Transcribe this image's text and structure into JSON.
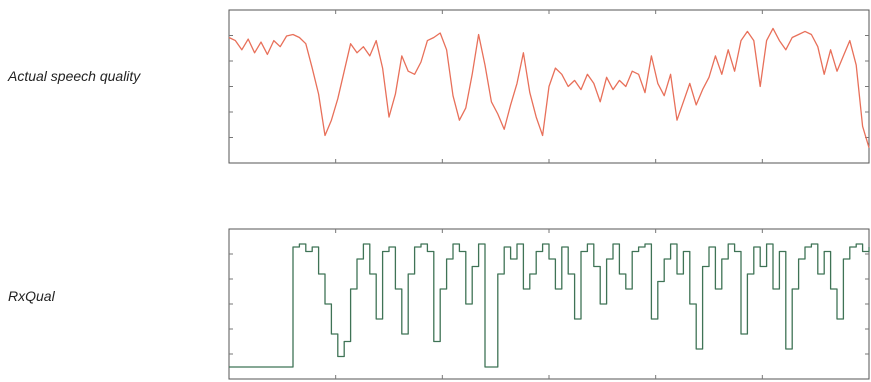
{
  "labels": {
    "top": "Actual speech quality",
    "bottom": "RxQual"
  },
  "colors": {
    "speech_line": "#e8705a",
    "rxqual_line": "#3f7356",
    "axis": "#555555",
    "tick": "#777777"
  },
  "chart_data": [
    {
      "type": "line",
      "title": "",
      "xlabel": "",
      "ylabel": "",
      "xlim": [
        0,
        100
      ],
      "ylim": [
        0,
        100
      ],
      "grid": false,
      "series": [
        {
          "x": [
            0,
            1,
            2,
            3,
            4,
            5,
            6,
            7,
            8,
            9,
            10,
            11,
            12,
            13,
            14,
            15,
            16,
            17,
            18,
            19,
            20,
            21,
            22,
            23,
            24,
            25,
            26,
            27,
            28,
            29,
            30,
            31,
            32,
            33,
            34,
            35,
            36,
            37,
            38,
            39,
            40,
            41,
            42,
            43,
            44,
            45,
            46,
            47,
            48,
            49,
            50,
            51,
            52,
            53,
            54,
            55,
            56,
            57,
            58,
            59,
            60,
            61,
            62,
            63,
            64,
            65,
            66,
            67,
            68,
            69,
            70,
            71,
            72,
            73,
            74,
            75,
            76,
            77,
            78,
            79,
            80,
            81,
            82,
            83,
            84,
            85,
            86,
            87,
            88,
            89,
            90,
            91,
            92,
            93,
            94,
            95,
            96,
            97,
            98,
            99,
            100
          ],
          "y": [
            82,
            80,
            74,
            81,
            72,
            79,
            71,
            80,
            76,
            83,
            84,
            82,
            78,
            62,
            45,
            18,
            28,
            42,
            60,
            78,
            72,
            76,
            70,
            80,
            62,
            30,
            45,
            70,
            60,
            58,
            66,
            80,
            82,
            85,
            74,
            44,
            28,
            36,
            58,
            84,
            64,
            40,
            32,
            22,
            38,
            52,
            72,
            46,
            30,
            18,
            50,
            62,
            58,
            50,
            54,
            48,
            58,
            52,
            40,
            56,
            48,
            54,
            50,
            60,
            58,
            46,
            70,
            52,
            44,
            58,
            28,
            40,
            52,
            38,
            48,
            56,
            70,
            58,
            74,
            60,
            80,
            86,
            80,
            50,
            80,
            88,
            80,
            74,
            82,
            84,
            86,
            84,
            76,
            58,
            74,
            60,
            70,
            80,
            64,
            24,
            10
          ]
        }
      ]
    },
    {
      "type": "line",
      "title": "",
      "xlabel": "",
      "ylabel": "",
      "xlim": [
        0,
        100
      ],
      "ylim": [
        0,
        100
      ],
      "grid": false,
      "series": [
        {
          "x": [
            0,
            1,
            2,
            3,
            4,
            5,
            6,
            7,
            8,
            9,
            10,
            11,
            12,
            13,
            14,
            15,
            16,
            17,
            18,
            19,
            20,
            21,
            22,
            23,
            24,
            25,
            26,
            27,
            28,
            29,
            30,
            31,
            32,
            33,
            34,
            35,
            36,
            37,
            38,
            39,
            40,
            41,
            42,
            43,
            44,
            45,
            46,
            47,
            48,
            49,
            50,
            51,
            52,
            53,
            54,
            55,
            56,
            57,
            58,
            59,
            60,
            61,
            62,
            63,
            64,
            65,
            66,
            67,
            68,
            69,
            70,
            71,
            72,
            73,
            74,
            75,
            76,
            77,
            78,
            79,
            80,
            81,
            82,
            83,
            84,
            85,
            86,
            87,
            88,
            89,
            90,
            91,
            92,
            93,
            94,
            95,
            96,
            97,
            98,
            99,
            100
          ],
          "y": [
            8,
            8,
            8,
            8,
            8,
            8,
            8,
            8,
            8,
            8,
            88,
            90,
            85,
            88,
            70,
            50,
            30,
            15,
            25,
            60,
            80,
            90,
            70,
            40,
            85,
            88,
            60,
            30,
            70,
            88,
            90,
            85,
            25,
            60,
            80,
            90,
            85,
            50,
            75,
            90,
            8,
            8,
            70,
            88,
            80,
            90,
            60,
            70,
            85,
            90,
            80,
            60,
            88,
            70,
            40,
            85,
            90,
            75,
            50,
            80,
            90,
            70,
            60,
            85,
            88,
            90,
            40,
            65,
            80,
            90,
            70,
            85,
            50,
            20,
            75,
            88,
            60,
            80,
            90,
            85,
            30,
            70,
            88,
            75,
            90,
            60,
            85,
            20,
            60,
            80,
            88,
            90,
            70,
            85,
            60,
            40,
            80,
            88,
            90,
            85,
            88
          ]
        }
      ]
    }
  ]
}
